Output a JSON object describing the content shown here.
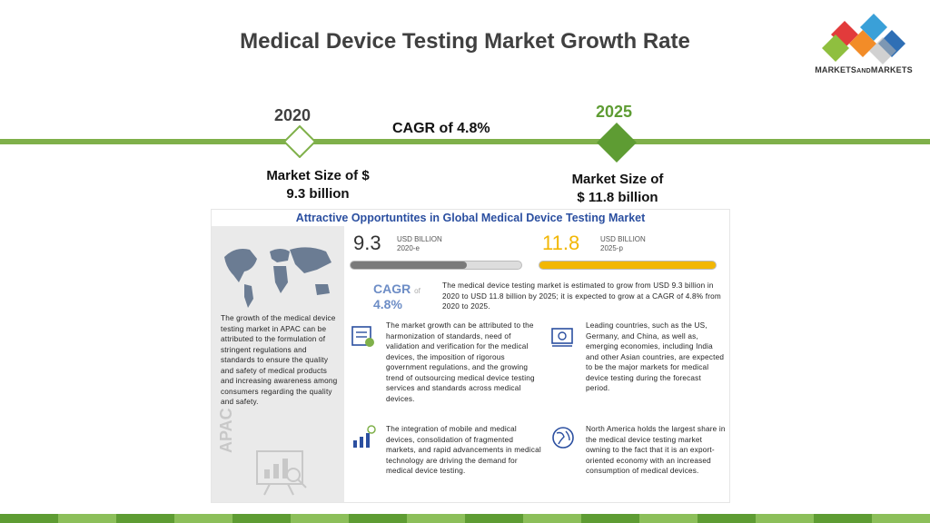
{
  "title": "Medical Device Testing Market Growth Rate",
  "logo": {
    "text_main": "MARKETS",
    "text_and": "AND",
    "text_end": "MARKETS"
  },
  "timeline": {
    "start_year": "2020",
    "end_year": "2025",
    "cagr": "CAGR of 4.8%",
    "start_size_line1": "Market Size of $",
    "start_size_line2": "9.3 billion",
    "end_size_line1": "Market Size of",
    "end_size_line2": "$ 11.8 billion"
  },
  "card": {
    "title": "Attractive Opportuntites in Global Medical Device Testing Market",
    "value_2020": "9.3",
    "unit_2020": "USD BILLION",
    "sub_2020": "2020-e",
    "value_2025": "11.8",
    "unit_2025": "USD BILLION",
    "sub_2025": "2025-p",
    "cagr_label": "CAGR",
    "cagr_value": "4.8%",
    "cagr_of": "of",
    "summary": "The medical device testing market is estimated to grow from USD 9.3 billion in 2020 to USD 11.8 billion by 2025; it is expected to grow at a CAGR of 4.8% from 2020 to 2025.",
    "apac_text": "The growth of the medical device testing market in APAC can be attributed to the formulation of stringent regulations and standards to ensure the quality and safety of medical products and increasing awareness among consumers regarding the quality and safety.",
    "apac_label": "APAC",
    "point1": "The market growth can be attributed to the harmonization of standards, need of validation and verification for the medical devices, the imposition of rigorous government regulations, and the growing trend of outsourcing medical device testing services and standards across medical devices.",
    "point2": "Leading countries, such as the US, Germany, and China, as well as, emerging economies, including India and other Asian countries, are expected to be the major markets for medical device testing during the forecast period.",
    "point3": "The integration of mobile and medical devices, consolidation of fragmented markets, and rapid advancements in medical technology are driving the demand for medical device testing.",
    "point4": "North America holds the largest share in the medical device testing market owning to the fact that it is an export-oriented economy with an increased consumption of medical devices."
  },
  "colors": {
    "accent_green": "#7fb04a",
    "dark_green": "#5e9c33",
    "bar_gray": "#7a7a7a",
    "bar_yellow": "#f2b705",
    "title_blue": "#2b4fa0"
  }
}
